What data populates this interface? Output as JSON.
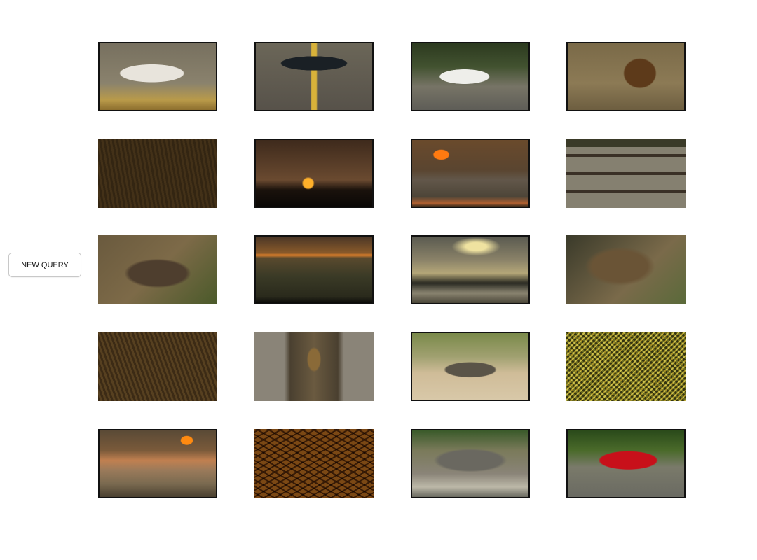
{
  "button": {
    "label": "NEW QUERY"
  }
}
